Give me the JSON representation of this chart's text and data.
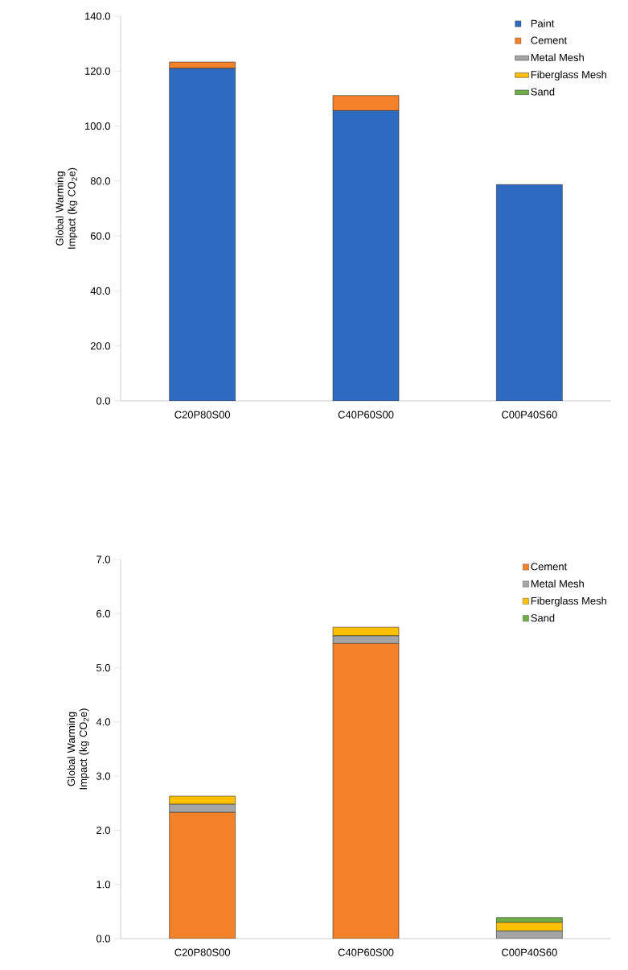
{
  "chart_data": [
    {
      "type": "bar",
      "stacked": true,
      "legend": "top right",
      "ylabel": "Global Warming Impact (kg CO$_{2}$e)",
      "categories": [
        "C20P80S00",
        "C40P60S00",
        "C00P40S60"
      ],
      "ylim": [
        0,
        140
      ],
      "yticks": [
        {
          "value": 0,
          "label": "0.0"
        },
        {
          "value": 20,
          "label": "20.0"
        },
        {
          "value": 40,
          "label": "40.0"
        },
        {
          "value": 60,
          "label": "60.0"
        },
        {
          "value": 80,
          "label": "80.0"
        },
        {
          "value": 100,
          "label": "100.0"
        },
        {
          "value": 120,
          "label": "120.0"
        },
        {
          "value": 140,
          "label": "140.0"
        }
      ],
      "series": [
        {
          "name": "Paint",
          "color": "#2e6bc0",
          "values": [
            121.0,
            105.6,
            78.7
          ]
        },
        {
          "name": "Cement",
          "color": "#f58128",
          "values": [
            2.3,
            5.5,
            0
          ]
        },
        {
          "name": "Metal Mesh",
          "color": "#a5a5a5",
          "values": [
            null,
            null,
            null
          ]
        },
        {
          "name": "Fiberglass Mesh",
          "color": "#ffc000",
          "values": [
            null,
            null,
            null
          ]
        },
        {
          "name": "Sand",
          "color": "#70ad47",
          "values": [
            null,
            null,
            null
          ]
        }
      ]
    },
    {
      "type": "bar",
      "stacked": true,
      "legend": "top right",
      "ylabel": "Global Warming Impact (kg CO$_{2}$e)",
      "categories": [
        "C20P80S00",
        "C40P60S00",
        "C00P40S60"
      ],
      "ylim": [
        0,
        7
      ],
      "yticks": [
        {
          "value": 0,
          "label": "0.0"
        },
        {
          "value": 1,
          "label": "1.0"
        },
        {
          "value": 2,
          "label": "2.0"
        },
        {
          "value": 3,
          "label": "3.0"
        },
        {
          "value": 4,
          "label": "4.0"
        },
        {
          "value": 5,
          "label": "5.0"
        },
        {
          "value": 6,
          "label": "6.0"
        },
        {
          "value": 7,
          "label": "7.0"
        }
      ],
      "series": [
        {
          "name": "Cement",
          "color": "#f58128",
          "values": [
            2.33,
            5.45,
            0
          ]
        },
        {
          "name": "Metal Mesh",
          "color": "#a5a5a5",
          "values": [
            0.15,
            0.14,
            0.14
          ]
        },
        {
          "name": "Fiberglass Mesh",
          "color": "#ffc000",
          "values": [
            0.15,
            0.16,
            0.16
          ]
        },
        {
          "name": "Sand",
          "color": "#70ad47",
          "values": [
            0,
            0,
            0.09
          ]
        }
      ]
    }
  ]
}
